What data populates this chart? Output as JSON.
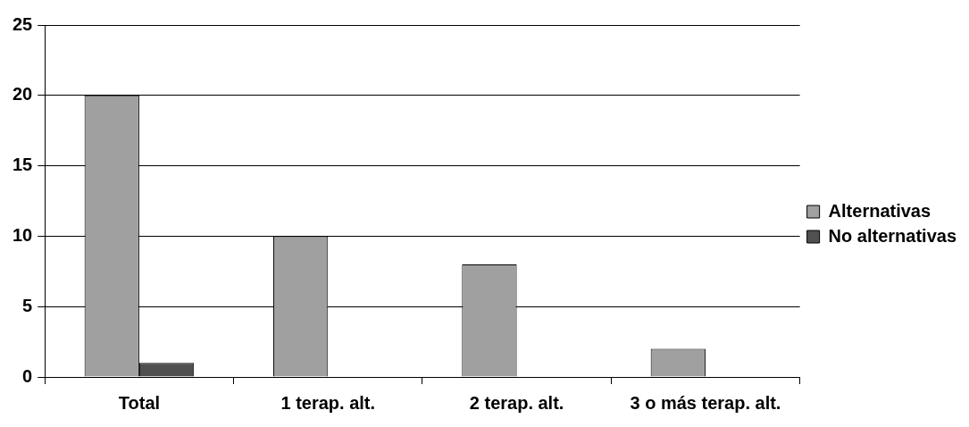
{
  "chart_data": {
    "type": "bar",
    "categories": [
      "Total",
      "1 terap. alt.",
      "2 terap. alt.",
      "3 o más terap. alt."
    ],
    "series": [
      {
        "name": "Alternativas",
        "color": "#a0a0a0",
        "values": [
          20,
          10,
          8,
          2
        ]
      },
      {
        "name": "No alternativas",
        "color": "#505050",
        "values": [
          1,
          0,
          0,
          0
        ]
      }
    ],
    "ylim": [
      0,
      25
    ],
    "yticks": [
      0,
      5,
      10,
      15,
      20,
      25
    ],
    "grid": "y",
    "legend": "right"
  }
}
